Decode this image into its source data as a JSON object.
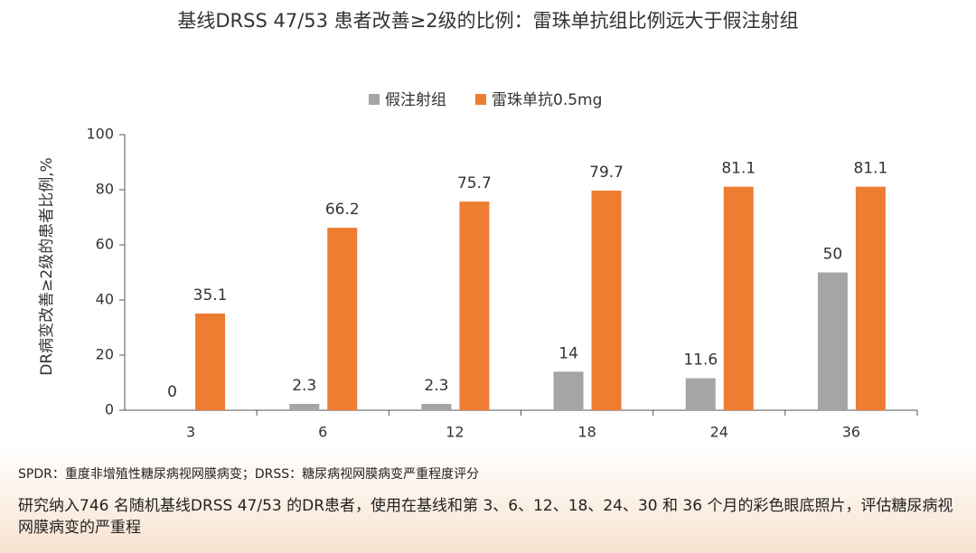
{
  "chart_data": {
    "type": "bar",
    "title": "基线DRSS 47/53 患者改善≥2级的比例：雷珠单抗组比例远大于假注射组",
    "y_label": "DR病变改善≥2级的患者比例,%",
    "categories": [
      "3",
      "6",
      "12",
      "18",
      "24",
      "36"
    ],
    "series": [
      {
        "name": "假注射组",
        "color": "#a5a5a5",
        "values": [
          0,
          2.3,
          2.3,
          14,
          11.6,
          50
        ]
      },
      {
        "name": "雷珠单抗0.5mg",
        "color": "#ed7d31",
        "values": [
          35.1,
          66.2,
          75.7,
          79.7,
          81.1,
          81.1
        ]
      }
    ],
    "ylim": [
      0,
      100
    ],
    "yticks": [
      0,
      20,
      40,
      60,
      80,
      100
    ],
    "grid": false,
    "legend": "top"
  },
  "notes": {
    "abbreviations": "SPDR：重度非增殖性糖尿病视网膜病变；DRSS：糖尿病视网膜病变严重程度评分",
    "description": "研究纳入746 名随机基线DRSS 47/53 的DR患者，使用在基线和第 3、6、12、18、24、30 和 36 个月的彩色眼底照片，评估糖尿病视网膜病变的严重程"
  }
}
